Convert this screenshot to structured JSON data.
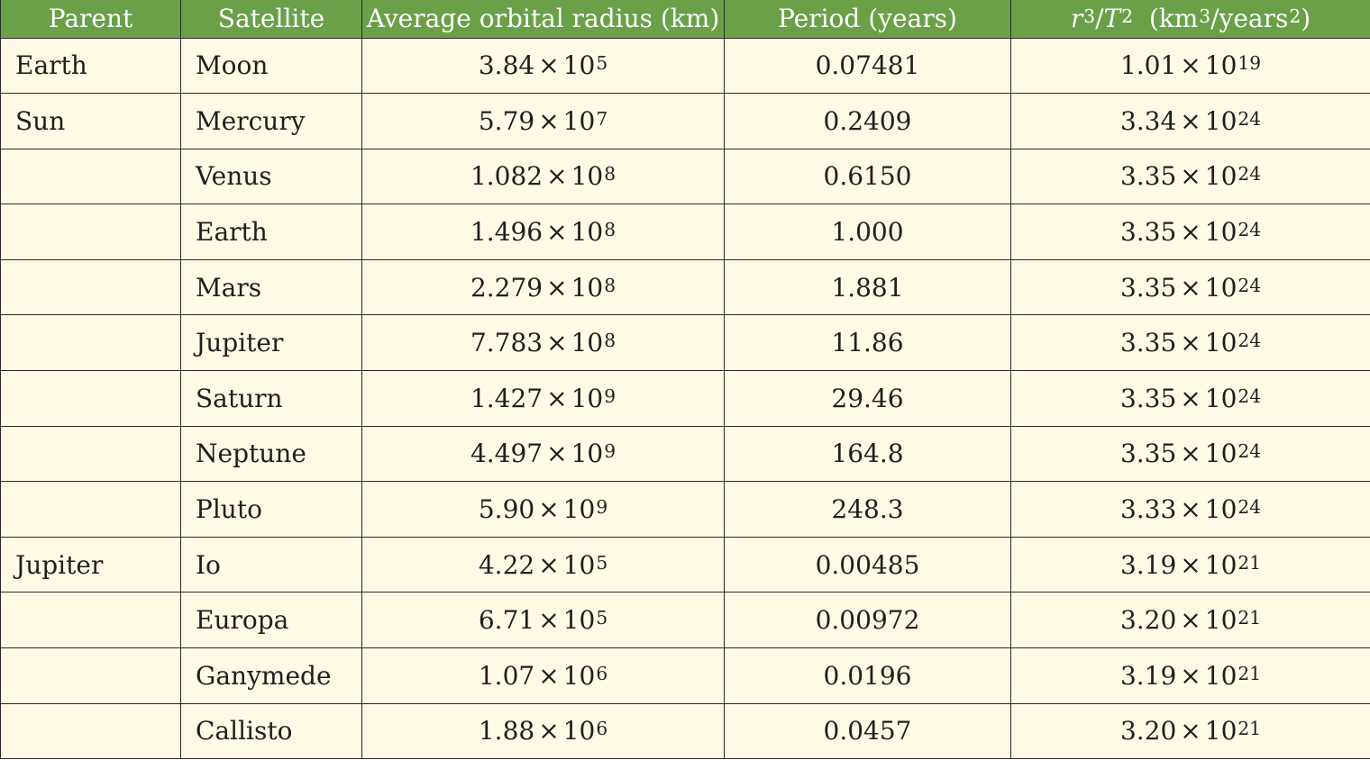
{
  "table": {
    "headers": [
      "Parent",
      "Satellite",
      "Average orbital radius (km)",
      "Period (years)"
    ],
    "header_last": {
      "r": "r",
      "r_exp": "3",
      "slash": "/",
      "T": "T",
      "T_exp": "2",
      "unit_open": "(km",
      "unit_exp1": "3",
      "unit_mid": "/years",
      "unit_exp2": "2",
      "unit_close": ")"
    },
    "times_sign": "×",
    "rows": [
      {
        "parent": "Earth",
        "satellite": "Moon",
        "radius_mant": "3.84",
        "radius_base": "10",
        "radius_exp": "5",
        "period": "0.07481",
        "ratio_mant": "1.01",
        "ratio_base": "10",
        "ratio_exp": "19"
      },
      {
        "parent": "Sun",
        "satellite": "Mercury",
        "radius_mant": "5.79",
        "radius_base": "10",
        "radius_exp": "7",
        "period": "0.2409",
        "ratio_mant": "3.34",
        "ratio_base": "10",
        "ratio_exp": "24"
      },
      {
        "parent": "",
        "satellite": "Venus",
        "radius_mant": "1.082",
        "radius_base": "10",
        "radius_exp": "8",
        "period": "0.6150",
        "ratio_mant": "3.35",
        "ratio_base": "10",
        "ratio_exp": "24"
      },
      {
        "parent": "",
        "satellite": "Earth",
        "radius_mant": "1.496",
        "radius_base": "10",
        "radius_exp": "8",
        "period": "1.000",
        "ratio_mant": "3.35",
        "ratio_base": "10",
        "ratio_exp": "24"
      },
      {
        "parent": "",
        "satellite": "Mars",
        "radius_mant": "2.279",
        "radius_base": "10",
        "radius_exp": "8",
        "period": "1.881",
        "ratio_mant": "3.35",
        "ratio_base": "10",
        "ratio_exp": "24"
      },
      {
        "parent": "",
        "satellite": "Jupiter",
        "radius_mant": "7.783",
        "radius_base": "10",
        "radius_exp": "8",
        "period": "11.86",
        "ratio_mant": "3.35",
        "ratio_base": "10",
        "ratio_exp": "24"
      },
      {
        "parent": "",
        "satellite": "Saturn",
        "radius_mant": "1.427",
        "radius_base": "10",
        "radius_exp": "9",
        "period": "29.46",
        "ratio_mant": "3.35",
        "ratio_base": "10",
        "ratio_exp": "24"
      },
      {
        "parent": "",
        "satellite": "Neptune",
        "radius_mant": "4.497",
        "radius_base": "10",
        "radius_exp": "9",
        "period": "164.8",
        "ratio_mant": "3.35",
        "ratio_base": "10",
        "ratio_exp": "24"
      },
      {
        "parent": "",
        "satellite": "Pluto",
        "radius_mant": "5.90",
        "radius_base": "10",
        "radius_exp": "9",
        "period": "248.3",
        "ratio_mant": "3.33",
        "ratio_base": "10",
        "ratio_exp": "24"
      },
      {
        "parent": "Jupiter",
        "satellite": "Io",
        "radius_mant": "4.22",
        "radius_base": "10",
        "radius_exp": "5",
        "period": "0.00485",
        "ratio_mant": "3.19",
        "ratio_base": "10",
        "ratio_exp": "21"
      },
      {
        "parent": "",
        "satellite": "Europa",
        "radius_mant": "6.71",
        "radius_base": "10",
        "radius_exp": "5",
        "period": "0.00972",
        "ratio_mant": "3.20",
        "ratio_base": "10",
        "ratio_exp": "21"
      },
      {
        "parent": "",
        "satellite": "Ganymede",
        "radius_mant": "1.07",
        "radius_base": "10",
        "radius_exp": "6",
        "period": "0.0196",
        "ratio_mant": "3.19",
        "ratio_base": "10",
        "ratio_exp": "21"
      },
      {
        "parent": "",
        "satellite": "Callisto",
        "radius_mant": "1.88",
        "radius_base": "10",
        "radius_exp": "6",
        "period": "0.0457",
        "ratio_mant": "3.20",
        "ratio_base": "10",
        "ratio_exp": "21"
      }
    ],
    "colors": {
      "header_bg": "#6aa148",
      "header_text": "#ffffff",
      "row_bg": "#fefae6",
      "border": "#2a2a2a"
    }
  }
}
